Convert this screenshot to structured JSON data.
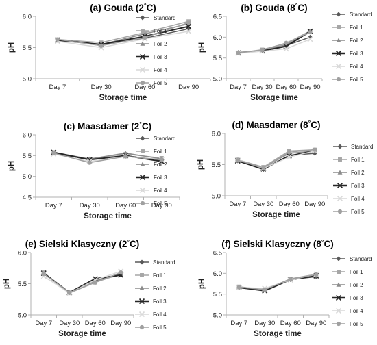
{
  "figure": {
    "style": {
      "grid": false,
      "axis_color": "#b0b0b0",
      "legend_placement": "right",
      "series_colors": [
        "#595959",
        "#a6a6a6",
        "#8c8c8c",
        "#262626",
        "#d9d9d9",
        "#a0a0a0"
      ],
      "series_markers": [
        "diamond",
        "square",
        "triangle",
        "cross",
        "cross",
        "circle"
      ]
    }
  },
  "chart_data": [
    {
      "type": "line",
      "title": "(a) Gouda (2°C)",
      "xlabel": "Storage time",
      "ylabel": "pH",
      "categories": [
        "Day 7",
        "Day 30",
        "Day 60",
        "Day 90"
      ],
      "ylim": [
        5.0,
        6.0
      ],
      "yticks": [
        "5.0",
        "5.5",
        "6.0"
      ],
      "legend": "right",
      "series": [
        {
          "name": "Standard",
          "values": [
            5.62,
            5.55,
            5.65,
            5.8
          ]
        },
        {
          "name": "Foil 1",
          "values": [
            5.63,
            5.58,
            5.74,
            5.92
          ]
        },
        {
          "name": "Foil 2",
          "values": [
            5.61,
            5.55,
            5.72,
            5.88
          ]
        },
        {
          "name": "Foil 3",
          "values": [
            5.62,
            5.55,
            5.68,
            5.84
          ]
        },
        {
          "name": "Foil 4",
          "values": [
            5.6,
            5.5,
            5.64,
            5.76
          ]
        },
        {
          "name": "Foil 5",
          "values": [
            5.63,
            5.53,
            5.66,
            5.9
          ]
        }
      ]
    },
    {
      "type": "line",
      "title": "(b) Gouda (8°C)",
      "xlabel": "Storage time",
      "ylabel": "pH",
      "categories": [
        "Day 7",
        "Day 30",
        "Day 60",
        "Day 90"
      ],
      "ylim": [
        5.0,
        6.5
      ],
      "yticks": [
        "5.0",
        "5.5",
        "6.0",
        "6.5"
      ],
      "legend": "right",
      "series": [
        {
          "name": "Standard",
          "values": [
            5.63,
            5.68,
            5.8,
            6.0
          ]
        },
        {
          "name": "Foil 1",
          "values": [
            5.62,
            5.7,
            5.85,
            6.15
          ]
        },
        {
          "name": "Foil 2",
          "values": [
            5.62,
            5.68,
            5.82,
            6.12
          ]
        },
        {
          "name": "Foil 3",
          "values": [
            5.62,
            5.67,
            5.78,
            6.14
          ]
        },
        {
          "name": "Foil 4",
          "values": [
            5.61,
            5.66,
            5.72,
            5.95
          ]
        },
        {
          "name": "Foil 5",
          "values": [
            5.62,
            5.69,
            5.86,
            6.12
          ]
        }
      ]
    },
    {
      "type": "line",
      "title": "(c) Maasdamer (2°C)",
      "xlabel": "Storage time",
      "ylabel": "pH",
      "categories": [
        "Day 7",
        "Day 30",
        "Day 60",
        "Day 90"
      ],
      "ylim": [
        4.5,
        6.0
      ],
      "yticks": [
        "4.5",
        "5.0",
        "5.5",
        "6.0"
      ],
      "legend": "right",
      "series": [
        {
          "name": "Standard",
          "values": [
            5.56,
            5.4,
            5.5,
            5.38
          ]
        },
        {
          "name": "Foil 1",
          "values": [
            5.58,
            5.42,
            5.54,
            5.44
          ]
        },
        {
          "name": "Foil 2",
          "values": [
            5.56,
            5.42,
            5.56,
            5.42
          ]
        },
        {
          "name": "Foil 3",
          "values": [
            5.58,
            5.4,
            5.5,
            5.36
          ]
        },
        {
          "name": "Foil 4",
          "values": [
            5.54,
            5.36,
            5.48,
            5.4
          ]
        },
        {
          "name": "Foil 5",
          "values": [
            5.56,
            5.33,
            5.48,
            5.4
          ]
        }
      ]
    },
    {
      "type": "line",
      "title": "(d) Maasdamer (8°C)",
      "xlabel": "Storage time",
      "ylabel": "pH",
      "categories": [
        "Day 7",
        "Day 30",
        "Day 60",
        "Day 90"
      ],
      "ylim": [
        5.0,
        6.0
      ],
      "yticks": [
        "5.0",
        "5.5",
        "6.0"
      ],
      "legend": "right",
      "series": [
        {
          "name": "Standard",
          "values": [
            5.56,
            5.42,
            5.65,
            5.68
          ]
        },
        {
          "name": "Foil 1",
          "values": [
            5.58,
            5.46,
            5.72,
            5.74
          ]
        },
        {
          "name": "Foil 2",
          "values": [
            5.57,
            5.45,
            5.68,
            5.72
          ]
        },
        {
          "name": "Foil 3",
          "values": [
            5.56,
            5.43,
            5.64,
            5.72
          ]
        },
        {
          "name": "Foil 4",
          "values": [
            5.58,
            5.44,
            5.62,
            5.72
          ]
        },
        {
          "name": "Foil 5",
          "values": [
            5.57,
            5.45,
            5.7,
            5.74
          ]
        }
      ]
    },
    {
      "type": "line",
      "title": "(e) Sielski Klasyczny (2°C)",
      "xlabel": "Storage time",
      "ylabel": "pH",
      "categories": [
        "Day 7",
        "Day 30",
        "Day 60",
        "Day 90"
      ],
      "ylim": [
        5.0,
        6.0
      ],
      "yticks": [
        "5.0",
        "5.5",
        "6.0"
      ],
      "legend": "right",
      "series": [
        {
          "name": "Standard",
          "values": [
            5.66,
            5.36,
            5.55,
            5.64
          ]
        },
        {
          "name": "Foil 1",
          "values": [
            5.68,
            5.35,
            5.52,
            5.66
          ]
        },
        {
          "name": "Foil 2",
          "values": [
            5.66,
            5.36,
            5.54,
            5.66
          ]
        },
        {
          "name": "Foil 3",
          "values": [
            5.67,
            5.36,
            5.58,
            5.64
          ]
        },
        {
          "name": "Foil 4",
          "values": [
            5.62,
            5.35,
            5.56,
            5.7
          ]
        },
        {
          "name": "Foil 5",
          "values": [
            5.66,
            5.36,
            5.52,
            5.68
          ]
        }
      ]
    },
    {
      "type": "line",
      "title": "(f) Sielski Klasyczny (8°C)",
      "xlabel": "Storage time",
      "ylabel": "pH",
      "categories": [
        "Day 7",
        "Day 30",
        "Day 60",
        "Day 90"
      ],
      "ylim": [
        5.0,
        6.5
      ],
      "yticks": [
        "5.0",
        "5.5",
        "6.0",
        "6.5"
      ],
      "legend": "right",
      "series": [
        {
          "name": "Standard",
          "values": [
            5.66,
            5.6,
            5.85,
            5.92
          ]
        },
        {
          "name": "Foil 1",
          "values": [
            5.68,
            5.6,
            5.87,
            5.98
          ]
        },
        {
          "name": "Foil 2",
          "values": [
            5.67,
            5.62,
            5.86,
            5.96
          ]
        },
        {
          "name": "Foil 3",
          "values": [
            5.66,
            5.58,
            5.85,
            5.94
          ]
        },
        {
          "name": "Foil 4",
          "values": [
            5.66,
            5.64,
            5.84,
            5.98
          ]
        },
        {
          "name": "Foil 5",
          "values": [
            5.67,
            5.61,
            5.86,
            5.97
          ]
        }
      ]
    }
  ]
}
